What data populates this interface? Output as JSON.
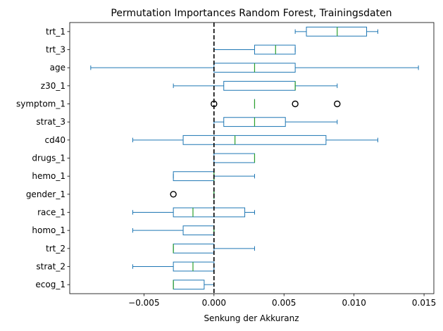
{
  "chart_data": {
    "type": "boxplot",
    "orientation": "horizontal",
    "title": "Permutation Importances Random Forest, Trainingsdaten",
    "xlabel": "Senkung der Akkuranz",
    "xlim": [
      -0.0103,
      0.0157
    ],
    "xticks": [
      -0.005,
      0.0,
      0.005,
      0.01,
      0.015
    ],
    "xtick_labels": [
      "−0.005",
      "0.000",
      "0.005",
      "0.010",
      "0.015"
    ],
    "reference_line": {
      "x": 0.0,
      "style": "dashed",
      "color": "#000000"
    },
    "colors": {
      "box": "#1f77b4",
      "median": "#2ca02c",
      "outlier": "#000000"
    },
    "categories": [
      "trt_1",
      "trt_3",
      "age",
      "z30_1",
      "symptom_1",
      "strat_3",
      "cd40",
      "drugs_1",
      "hemo_1",
      "gender_1",
      "race_1",
      "homo_1",
      "trt_2",
      "strat_2",
      "ecog_1"
    ],
    "boxes": [
      {
        "label": "trt_1",
        "whislo": 0.0058,
        "q1": 0.0066,
        "med": 0.0088,
        "q3": 0.0109,
        "whishi": 0.0117,
        "fliers": []
      },
      {
        "label": "trt_3",
        "whislo": 0.0,
        "q1": 0.0029,
        "med": 0.0044,
        "q3": 0.0058,
        "whishi": 0.0058,
        "fliers": []
      },
      {
        "label": "age",
        "whislo": -0.0088,
        "q1": 0.0,
        "med": 0.0029,
        "q3": 0.0058,
        "whishi": 0.0146,
        "fliers": []
      },
      {
        "label": "z30_1",
        "whislo": -0.0029,
        "q1": 0.0007,
        "med": 0.0058,
        "q3": 0.0058,
        "whishi": 0.0088,
        "fliers": []
      },
      {
        "label": "symptom_1",
        "whislo": 0.0029,
        "q1": 0.0029,
        "med": 0.0029,
        "q3": 0.0029,
        "whishi": 0.0029,
        "fliers": [
          0.0,
          0.0058,
          0.0088
        ]
      },
      {
        "label": "strat_3",
        "whislo": 0.0,
        "q1": 0.0007,
        "med": 0.0029,
        "q3": 0.0051,
        "whishi": 0.0088,
        "fliers": []
      },
      {
        "label": "cd40",
        "whislo": -0.0058,
        "q1": -0.0022,
        "med": 0.0015,
        "q3": 0.008,
        "whishi": 0.0117,
        "fliers": []
      },
      {
        "label": "drugs_1",
        "whislo": 0.0,
        "q1": 0.0,
        "med": 0.0029,
        "q3": 0.0029,
        "whishi": 0.0029,
        "fliers": []
      },
      {
        "label": "hemo_1",
        "whislo": -0.0029,
        "q1": -0.0029,
        "med": 0.0,
        "q3": 0.0,
        "whishi": 0.0029,
        "fliers": []
      },
      {
        "label": "gender_1",
        "whislo": 0.0,
        "q1": 0.0,
        "med": 0.0,
        "q3": 0.0,
        "whishi": 0.0,
        "fliers": [
          -0.0029
        ]
      },
      {
        "label": "race_1",
        "whislo": -0.0058,
        "q1": -0.0029,
        "med": -0.0015,
        "q3": 0.0022,
        "whishi": 0.0029,
        "fliers": []
      },
      {
        "label": "homo_1",
        "whislo": -0.0058,
        "q1": -0.0022,
        "med": 0.0,
        "q3": 0.0,
        "whishi": 0.0,
        "fliers": []
      },
      {
        "label": "trt_2",
        "whislo": -0.0029,
        "q1": -0.0029,
        "med": -0.0029,
        "q3": 0.0,
        "whishi": 0.0029,
        "fliers": []
      },
      {
        "label": "strat_2",
        "whislo": -0.0058,
        "q1": -0.0029,
        "med": -0.0015,
        "q3": 0.0,
        "whishi": 0.0,
        "fliers": []
      },
      {
        "label": "ecog_1",
        "whislo": -0.0029,
        "q1": -0.0029,
        "med": -0.0029,
        "q3": -0.0007,
        "whishi": 0.0,
        "fliers": []
      }
    ]
  }
}
